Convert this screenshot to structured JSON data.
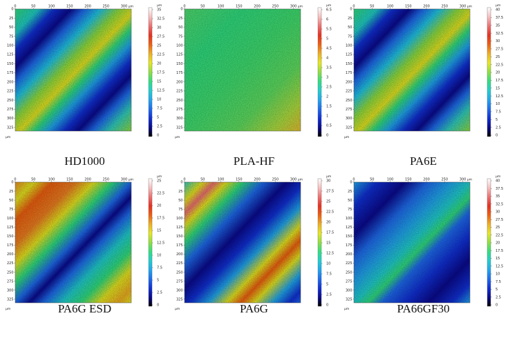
{
  "colormap": [
    "#000000",
    "#0a0a90",
    "#1030d8",
    "#1e6cf0",
    "#20a8f0",
    "#20d0d0",
    "#30e080",
    "#90e040",
    "#e8e820",
    "#f0b020",
    "#f06010",
    "#e83020",
    "#f07070",
    "#f8c0c0",
    "#ffffff"
  ],
  "panels": [
    {
      "caption": "HD1000",
      "x_ticks": [
        "0",
        "50",
        "100",
        "150",
        "200",
        "250",
        "300"
      ],
      "x_unit": "µm",
      "y_ticks": [
        "0",
        "25",
        "50",
        "75",
        "100",
        "125",
        "150",
        "175",
        "200",
        "225",
        "250",
        "275",
        "300",
        "325"
      ],
      "y_unit": "µm",
      "colorbar_unit": "µm",
      "colorbar_ticks": [
        "35",
        "32.5",
        "30",
        "27.5",
        "25",
        "22.5",
        "20",
        "17.5",
        "15",
        "12.5",
        "10",
        "7.5",
        "5",
        "2.5",
        "0"
      ],
      "surface": "stripes-green-blue"
    },
    {
      "caption": "PLA-HF",
      "x_ticks": [
        "0",
        "50",
        "100",
        "150",
        "200",
        "250",
        "300"
      ],
      "x_unit": "µm",
      "y_ticks": [
        "0",
        "25",
        "50",
        "75",
        "100",
        "125",
        "150",
        "175",
        "200",
        "225",
        "250",
        "275",
        "300",
        "325"
      ],
      "y_unit": "µm",
      "colorbar_unit": "µm",
      "colorbar_ticks": [
        "6.5",
        "6",
        "5.5",
        "5",
        "4.5",
        "4",
        "3.5",
        "3",
        "2.5",
        "2",
        "1.5",
        "1",
        "0.5",
        "0"
      ],
      "surface": "flat-green"
    },
    {
      "caption": "PA6E",
      "x_ticks": [
        "0",
        "50",
        "100",
        "150",
        "200",
        "250",
        "300"
      ],
      "x_unit": "µm",
      "y_ticks": [
        "0",
        "25",
        "50",
        "75",
        "100",
        "125",
        "150",
        "175",
        "200",
        "225",
        "250",
        "275",
        "300",
        "325"
      ],
      "y_unit": "µm",
      "colorbar_unit": "µm",
      "colorbar_ticks": [
        "40",
        "37.5",
        "35",
        "32.5",
        "30",
        "27.5",
        "25",
        "22.5",
        "20",
        "17.5",
        "15",
        "12.5",
        "10",
        "7.5",
        "5",
        "2.5",
        "0"
      ],
      "surface": "stripes-green-blue"
    },
    {
      "caption": "PA6G ESD",
      "x_ticks": [
        "0",
        "50",
        "100",
        "150",
        "200",
        "250",
        "300"
      ],
      "x_unit": "µm",
      "y_ticks": [
        "0",
        "25",
        "50",
        "75",
        "100",
        "125",
        "150",
        "175",
        "200",
        "225",
        "250",
        "275",
        "300",
        "325"
      ],
      "y_unit": "µm",
      "colorbar_unit": "µm",
      "colorbar_ticks": [
        "25",
        "22.5",
        "20",
        "17.5",
        "15",
        "12.5",
        "10",
        "7.5",
        "5",
        "2.5",
        "0"
      ],
      "surface": "stripes-orange-blue"
    },
    {
      "caption": "PA6G",
      "x_ticks": [
        "0",
        "50",
        "100",
        "150",
        "200",
        "250",
        "300"
      ],
      "x_unit": "µm",
      "y_ticks": [
        "0",
        "25",
        "50",
        "75",
        "100",
        "125",
        "150",
        "175",
        "200",
        "225",
        "250",
        "275",
        "300",
        "325"
      ],
      "y_unit": "µm",
      "colorbar_unit": "µm",
      "colorbar_ticks": [
        "30",
        "27.5",
        "25",
        "22.5",
        "20",
        "17.5",
        "15",
        "12.5",
        "10",
        "7.5",
        "5",
        "2.5",
        "0"
      ],
      "surface": "stripes-mixed"
    },
    {
      "caption": "PA66GF30",
      "x_ticks": [
        "0",
        "50",
        "100",
        "150",
        "200",
        "250",
        "300"
      ],
      "x_unit": "µm",
      "y_ticks": [
        "0",
        "25",
        "50",
        "75",
        "100",
        "125",
        "150",
        "175",
        "200",
        "225",
        "250",
        "275",
        "300",
        "325"
      ],
      "y_unit": "µm",
      "colorbar_unit": "µm",
      "colorbar_ticks": [
        "40",
        "37.5",
        "35",
        "32.5",
        "30",
        "27.5",
        "25",
        "22.5",
        "20",
        "17.5",
        "15",
        "12.5",
        "10",
        "7.5",
        "5",
        "2.5",
        "0"
      ],
      "surface": "blue-dominant"
    }
  ]
}
